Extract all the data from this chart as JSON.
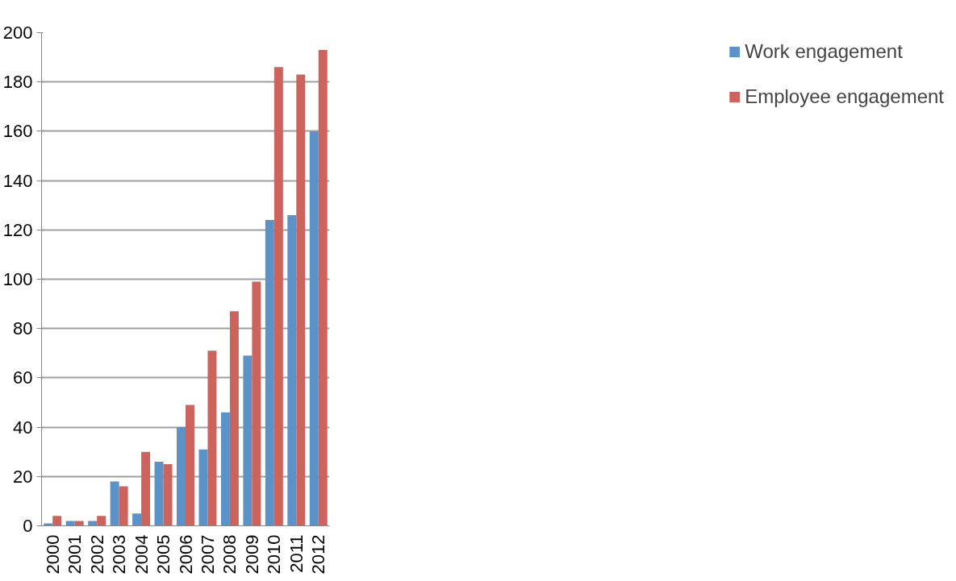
{
  "chart_data": {
    "type": "bar",
    "categories": [
      "2000",
      "2001",
      "2002",
      "2003",
      "2004",
      "2005",
      "2006",
      "2007",
      "2008",
      "2009",
      "2010",
      "2011",
      "2012"
    ],
    "series": [
      {
        "name": "Work engagement",
        "color": "#5b93c8",
        "values": [
          1,
          2,
          2,
          18,
          5,
          26,
          40,
          31,
          46,
          69,
          124,
          126,
          160
        ]
      },
      {
        "name": "Employee engagement",
        "color": "#cc645d",
        "values": [
          4,
          2,
          4,
          16,
          30,
          25,
          49,
          71,
          87,
          99,
          186,
          183,
          193
        ]
      }
    ],
    "ylim": [
      0,
      200
    ],
    "yticks": [
      0,
      20,
      40,
      60,
      80,
      100,
      120,
      140,
      160,
      180,
      200
    ],
    "grid": "y",
    "legend": "right"
  }
}
